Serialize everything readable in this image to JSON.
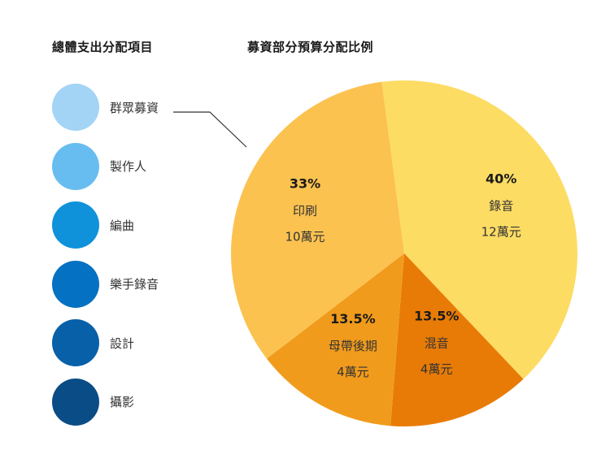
{
  "left_title": "總體支出分配項目",
  "legend": [
    {
      "label": "群眾募資",
      "color": "#a3d4f5"
    },
    {
      "label": "製作人",
      "color": "#68bdf0"
    },
    {
      "label": "編曲",
      "color": "#0f92da"
    },
    {
      "label": "樂手錄音",
      "color": "#0571c2"
    },
    {
      "label": "設計",
      "color": "#0860a8"
    },
    {
      "label": "攝影",
      "color": "#0a4c86"
    }
  ],
  "chart_data": {
    "type": "pie",
    "title": "募資部分預算分配比例",
    "slices": [
      {
        "label": "錄音",
        "percent_label": "40%",
        "amount_label": "12萬元",
        "value": 12,
        "color": "#fddc64"
      },
      {
        "label": "混音",
        "percent_label": "13.5%",
        "amount_label": "4萬元",
        "value": 4,
        "color": "#e87b06"
      },
      {
        "label": "母帶後期",
        "percent_label": "13.5%",
        "amount_label": "4萬元",
        "value": 4,
        "color": "#f19b1c"
      },
      {
        "label": "印刷",
        "percent_label": "33%",
        "amount_label": "10萬元",
        "value": 10,
        "color": "#fbc250"
      }
    ]
  }
}
